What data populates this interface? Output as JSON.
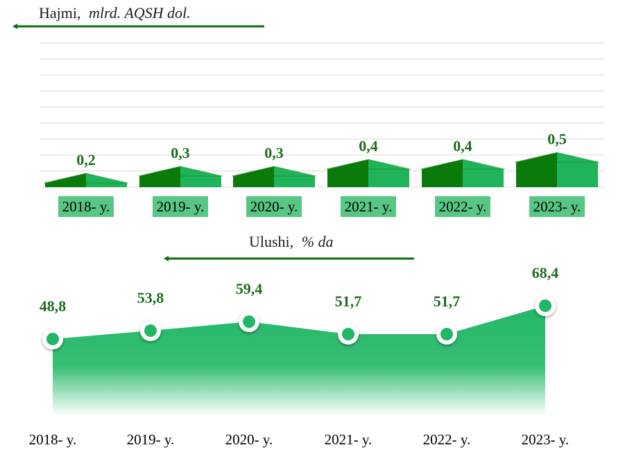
{
  "chart_data": [
    {
      "type": "bar",
      "title": "Hajmi,",
      "title_unit": "mlrd. AQSH dol.",
      "categories": [
        "2018- y.",
        "2019- y.",
        "2020- y.",
        "2021- y.",
        "2022- y.",
        "2023- y."
      ],
      "values": [
        0.2,
        0.3,
        0.3,
        0.4,
        0.4,
        0.5
      ],
      "value_labels": [
        "0,2",
        "0,3",
        "0,3",
        "0,4",
        "0,4",
        "0,5"
      ],
      "grid": true
    },
    {
      "type": "area",
      "title": "Ulushi,",
      "title_unit": "% da",
      "categories": [
        "2018- y.",
        "2019- y.",
        "2020- y.",
        "2021- y.",
        "2022- y.",
        "2023- y."
      ],
      "values": [
        48.8,
        53.8,
        59.4,
        51.7,
        51.7,
        68.4
      ],
      "value_labels": [
        "48,8",
        "53,8",
        "59,4",
        "51,7",
        "51,7",
        "68,4"
      ],
      "markers": true
    }
  ],
  "colors": {
    "dark_green": "#0a7a0a",
    "light_green": "#1fb45a",
    "area_green": "#22b766",
    "title_line": "#0a6e0a",
    "label": "#1f6b1f",
    "grid": "#d9d9d9"
  }
}
